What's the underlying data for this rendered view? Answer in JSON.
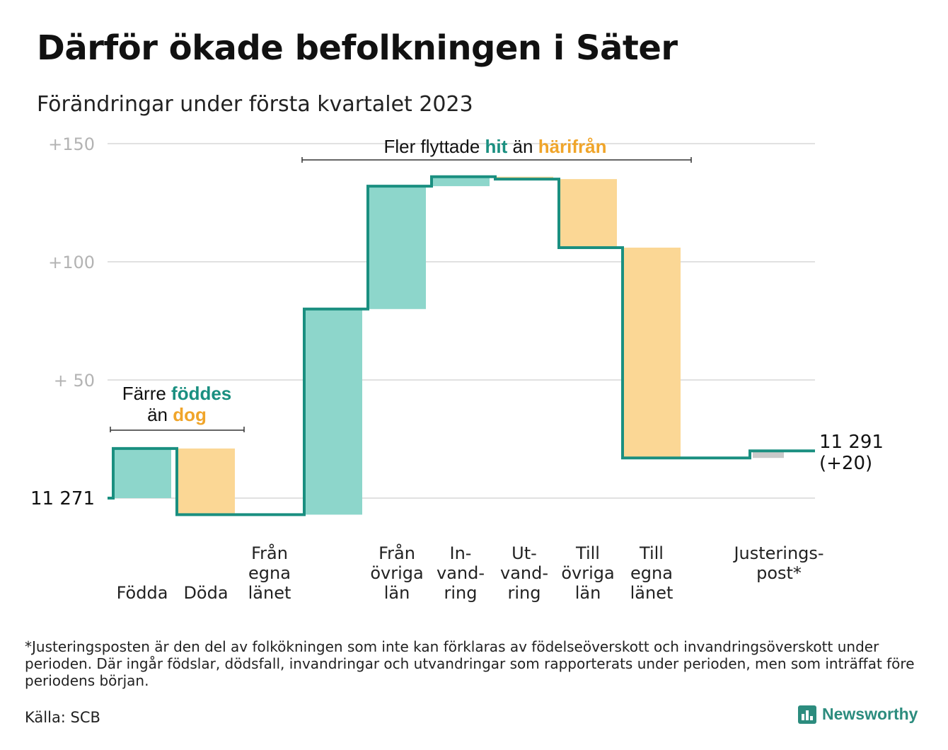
{
  "title": "Därför ökade befolkningen i Säter",
  "subtitle": "Förändringar under första kvartalet 2023",
  "footnote": "*Justeringsposten är den del av folkökningen som inte kan förklaras av födelseöverskott och invandringsöverskott under perioden. Där ingår födslar, dödsfall, invandringar och utvandringar som rapporterats under perioden, men som inträffat före periodens början.",
  "source": "Källa: SCB",
  "brand": "Newsworthy",
  "colors": {
    "in": "#8dd6cb",
    "out": "#fbd795",
    "adjust": "#c9c9c9",
    "line": "#1a8f80",
    "teal_text": "#1a8f80",
    "orange_text": "#f0a52a",
    "grid": "#e1e1e1"
  },
  "chart_data": {
    "type": "waterfall",
    "start_label": "11 271",
    "end_label": [
      "11 291",
      "(+20)"
    ],
    "y_ticks": [
      "+150",
      "+100",
      "+ 50"
    ],
    "ylim": [
      -10,
      150
    ],
    "start_value": 0,
    "end_value": 20,
    "steps": [
      {
        "label": [
          "",
          "",
          "Födda"
        ],
        "change": 21,
        "kind": "in"
      },
      {
        "label": [
          "",
          "",
          "Döda"
        ],
        "change": -28,
        "kind": "out"
      },
      {
        "label": [
          "Från",
          "egna",
          "länet"
        ],
        "change": 0,
        "kind": "none"
      },
      {
        "label": [
          "",
          "",
          ""
        ],
        "change": 87,
        "kind": "in"
      },
      {
        "label": [
          "Från",
          "övriga",
          "län"
        ],
        "change": 52,
        "kind": "in"
      },
      {
        "label": [
          "In-",
          "vand-",
          "ring"
        ],
        "change": 4,
        "kind": "in"
      },
      {
        "label": [
          "Ut-",
          "vand-",
          "ring"
        ],
        "change": -1,
        "kind": "out"
      },
      {
        "label": [
          "Till",
          "övriga",
          "län"
        ],
        "change": -29,
        "kind": "out"
      },
      {
        "label": [
          "Till",
          "egna",
          "länet"
        ],
        "change": -89,
        "kind": "out"
      },
      {
        "label": [
          "",
          "",
          ""
        ],
        "change": 0,
        "kind": "none"
      },
      {
        "label": [
          "Justerings-",
          "post*",
          ""
        ],
        "change": 3,
        "kind": "adjust"
      }
    ],
    "annotations": [
      {
        "parts": [
          "Färre ",
          "föddes"
        ],
        "styles": [
          "plain",
          "teal"
        ],
        "line2": [
          "än ",
          "dog"
        ],
        "styles2": [
          "plain",
          "orange"
        ]
      },
      {
        "parts": [
          "Fler flyttade ",
          "hit",
          " än ",
          "härifrån"
        ],
        "styles": [
          "plain",
          "teal",
          "plain",
          "orange"
        ]
      }
    ]
  }
}
